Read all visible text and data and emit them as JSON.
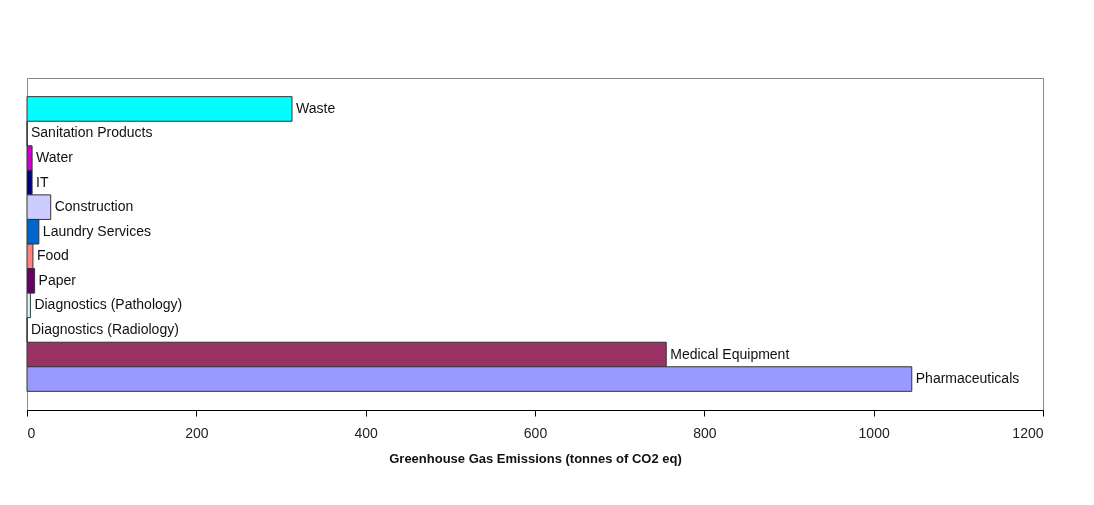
{
  "chart_data": {
    "type": "bar",
    "orientation": "horizontal",
    "xlabel": "Greenhouse Gas Emissions (tonnes of CO2 eq)",
    "categories": [
      "Waste",
      "Sanitation Products",
      "Water",
      "IT",
      "Construction",
      "Laundry Services",
      "Food",
      "Paper",
      "Diagnostics (Pathology)",
      "Diagnostics (Radiology)",
      "Medical Equipment",
      "Pharmaceuticals"
    ],
    "values": [
      313,
      0,
      6,
      6,
      28,
      14,
      7,
      9,
      4,
      0,
      755,
      1045
    ],
    "colors": [
      "#00ffff",
      "#333333",
      "#cc00cc",
      "#000080",
      "#ccccff",
      "#0066cc",
      "#ff8080",
      "#660066",
      "#ccffff",
      "#333333",
      "#993366",
      "#9999ff"
    ],
    "xlim": [
      0,
      1200
    ],
    "xticks": [
      0,
      200,
      400,
      600,
      800,
      1000,
      1200
    ],
    "tick_labels": "x",
    "grid": false
  }
}
